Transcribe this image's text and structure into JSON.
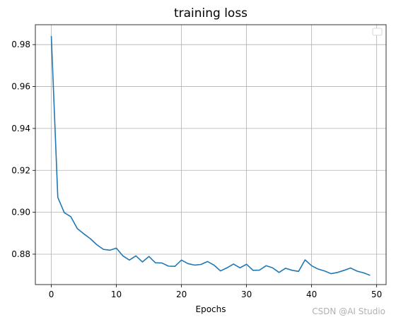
{
  "watermark": "CSDN @AI Studio",
  "colors": {
    "line": "#1f77b4",
    "grid": "#b0b0b0",
    "axes": "#000000"
  },
  "chart_data": {
    "type": "line",
    "title": "training loss",
    "xlabel": "Epochs",
    "ylabel": "",
    "xlim": [
      -2.45,
      51.45
    ],
    "ylim": [
      0.8655,
      0.9895
    ],
    "xticks": [
      0,
      10,
      20,
      30,
      40,
      50
    ],
    "yticks": [
      0.88,
      0.9,
      0.92,
      0.94,
      0.96,
      0.98
    ],
    "ytick_labels": [
      "0.88",
      "0.90",
      "0.92",
      "0.94",
      "0.96",
      "0.98"
    ],
    "grid": true,
    "legend": {
      "placement": "top-right",
      "entries": []
    },
    "series": [
      {
        "x": [
          0,
          1,
          2,
          3,
          4,
          5,
          6,
          7,
          8,
          9,
          10,
          11,
          12,
          13,
          14,
          15,
          16,
          17,
          18,
          19,
          20,
          21,
          22,
          23,
          24,
          25,
          26,
          27,
          28,
          29,
          30,
          31,
          32,
          33,
          34,
          35,
          36,
          37,
          38,
          39,
          40,
          41,
          42,
          43,
          44,
          45,
          46,
          47,
          48,
          49
        ],
        "values": [
          0.9841,
          0.9071,
          0.8998,
          0.8979,
          0.8922,
          0.8897,
          0.8874,
          0.8845,
          0.8823,
          0.8819,
          0.8829,
          0.8792,
          0.8772,
          0.8792,
          0.8763,
          0.8789,
          0.8759,
          0.8758,
          0.8743,
          0.8742,
          0.8772,
          0.8755,
          0.8748,
          0.8751,
          0.8765,
          0.8748,
          0.872,
          0.8735,
          0.8753,
          0.8735,
          0.8752,
          0.8723,
          0.8724,
          0.8745,
          0.8735,
          0.8713,
          0.8733,
          0.8723,
          0.8718,
          0.8773,
          0.8745,
          0.8729,
          0.872,
          0.8707,
          0.8713,
          0.8723,
          0.8734,
          0.8719,
          0.8711,
          0.8699
        ]
      }
    ]
  }
}
